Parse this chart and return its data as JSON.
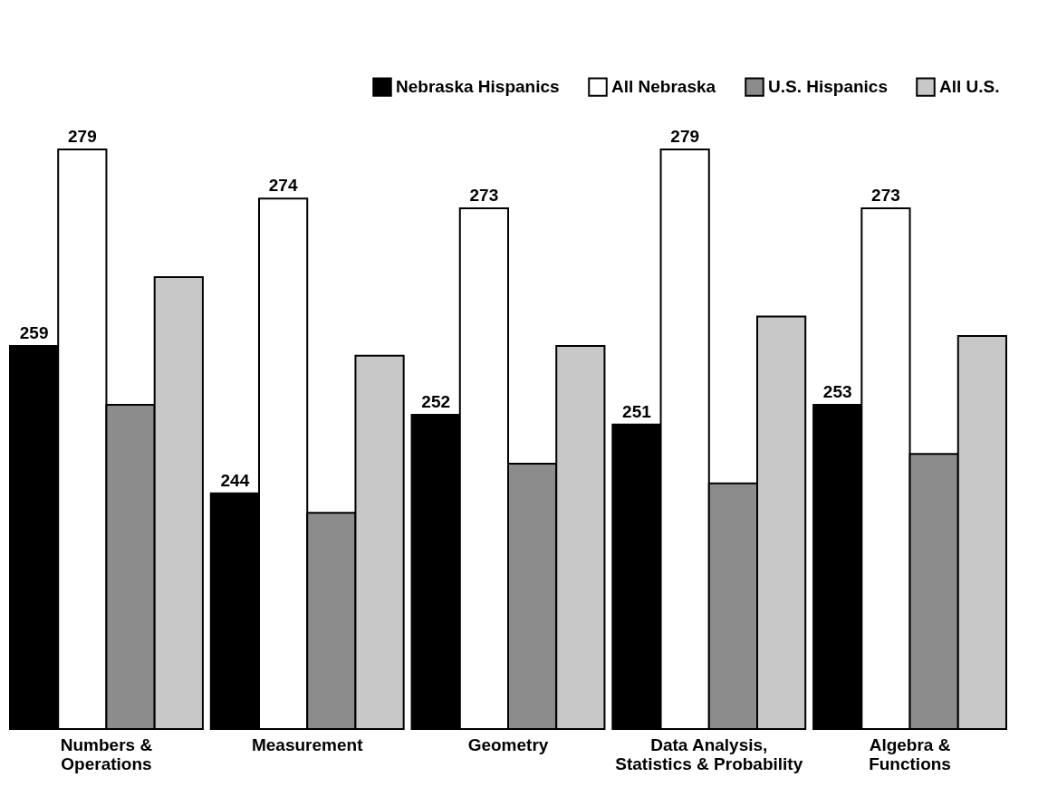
{
  "chart_data": {
    "type": "bar",
    "categories": [
      "Numbers & Operations",
      "Measurement",
      "Geometry",
      "Data Analysis, Statistics & Probability",
      "Algebra & Functions"
    ],
    "series": [
      {
        "name": "Nebraska Hispanics",
        "color": "#000000",
        "values": [
          259,
          244,
          252,
          251,
          253
        ],
        "value_labels": [
          "259",
          "244",
          "252",
          "251",
          "253"
        ]
      },
      {
        "name": "All Nebraska",
        "color": "#ffffff",
        "values": [
          279,
          274,
          273,
          279,
          273
        ],
        "value_labels": [
          "279",
          "274",
          "273",
          "279",
          "273"
        ]
      },
      {
        "name": "U.S. Hispanics",
        "color": "#8c8c8c",
        "values": [
          253,
          242,
          247,
          245,
          248
        ]
      },
      {
        "name": "All U.S.",
        "color": "#c8c8c8",
        "values": [
          266,
          258,
          259,
          262,
          260
        ]
      }
    ],
    "ylim": [
      220,
      279
    ],
    "legend": "top right"
  }
}
